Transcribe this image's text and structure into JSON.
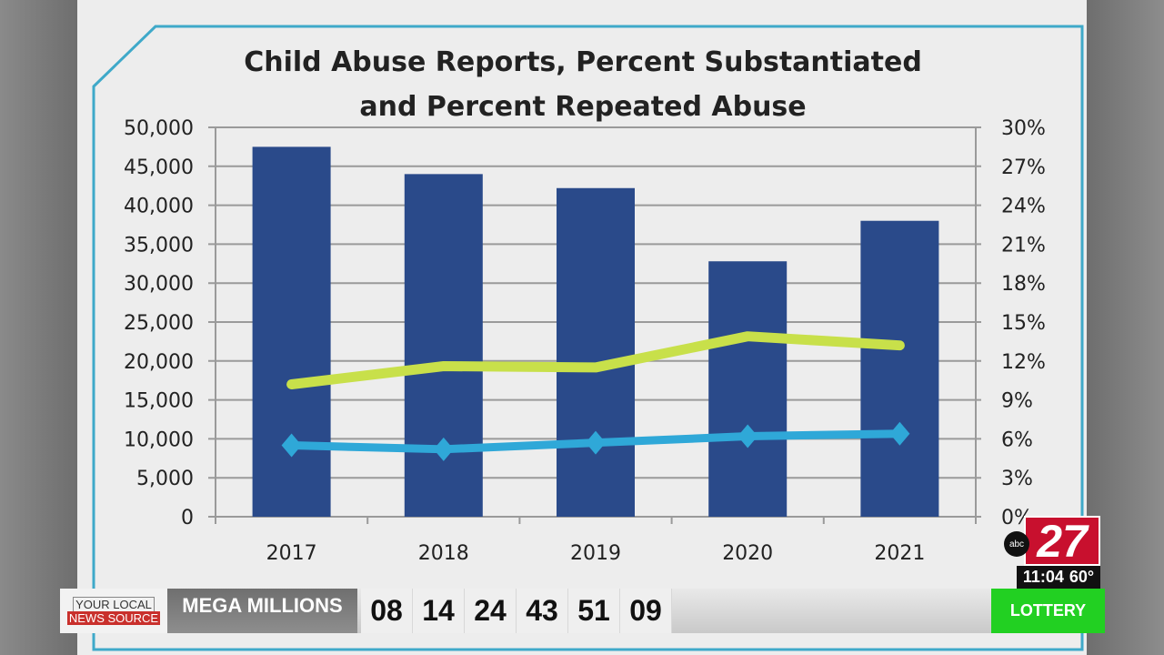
{
  "chart_data": {
    "type": "bar+line",
    "title": "Child Abuse Reports, Percent Substantiated and Percent Repeated Abuse",
    "title_lines": [
      "Child Abuse Reports, Percent Substantiated",
      "and Percent Repeated Abuse"
    ],
    "categories": [
      "2017",
      "2018",
      "2019",
      "2020",
      "2021"
    ],
    "left_axis": {
      "ylim": [
        0,
        50000
      ],
      "ticks": [
        "0",
        "5,000",
        "10,000",
        "15,000",
        "20,000",
        "25,000",
        "30,000",
        "35,000",
        "40,000",
        "45,000",
        "50,000"
      ]
    },
    "right_axis": {
      "ylim": [
        0,
        30
      ],
      "unit": "%",
      "ticks": [
        "0%",
        "3%",
        "6%",
        "9%",
        "12%",
        "15%",
        "18%",
        "21%",
        "24%",
        "27%",
        "30%"
      ]
    },
    "grid": true,
    "legend": "bottom (obscured)",
    "series": [
      {
        "type": "bar",
        "axis": "left",
        "color": "#2a4a8a",
        "values": [
          47500,
          44000,
          42200,
          32800,
          38000
        ]
      },
      {
        "type": "line",
        "axis": "right",
        "color": "#c8e04a",
        "values": [
          10.2,
          11.6,
          11.5,
          13.9,
          13.2
        ]
      },
      {
        "type": "line",
        "axis": "right",
        "color": "#2fa8d8",
        "marker": "diamond",
        "values": [
          5.5,
          5.2,
          5.7,
          6.2,
          6.4
        ]
      }
    ]
  },
  "ticker": {
    "logo_line1": "YOUR LOCAL",
    "logo_line2": "NEWS SOURCE",
    "category": "MEGA MILLIONS",
    "numbers": [
      "08",
      "14",
      "24",
      "43",
      "51",
      "09"
    ],
    "section": "LOTTERY"
  },
  "station_bug": {
    "network": "abc",
    "channel": "27",
    "time": "11:04",
    "temperature": "60°",
    "color": "#c8102e"
  }
}
